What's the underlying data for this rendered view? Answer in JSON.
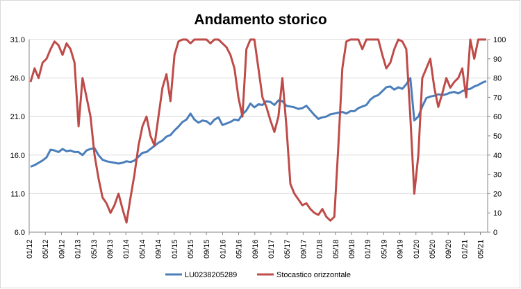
{
  "chart_data": {
    "type": "line",
    "title": "Andamento storico",
    "x_tick_labels": [
      "01/12",
      "05/12",
      "09/12",
      "01/13",
      "05/13",
      "09/13",
      "01/14",
      "05/14",
      "09/14",
      "01/15",
      "05/15",
      "09/15",
      "01/16",
      "05/16",
      "09/16",
      "01/17",
      "05/17",
      "09/17",
      "01/18",
      "05/18",
      "09/18",
      "01/19",
      "05/19",
      "09/19",
      "01/20",
      "05/20",
      "09/20",
      "01/21",
      "05/21"
    ],
    "y_left": {
      "ticks": [
        "6.0",
        "11.0",
        "16.0",
        "21.0",
        "26.0",
        "31.0"
      ],
      "ylim": [
        6,
        31
      ]
    },
    "y_right": {
      "ticks": [
        "0",
        "10",
        "20",
        "30",
        "40",
        "50",
        "60",
        "70",
        "80",
        "90",
        "100"
      ],
      "ylim": [
        0,
        100
      ]
    },
    "grid": "horizontal",
    "legend_position": "bottom",
    "colors": {
      "series_1": "#4a7ebb",
      "series_2": "#be4b48",
      "gridline": "#d9d9d9",
      "axis": "#868686"
    },
    "series": [
      {
        "name": "LU0238205289",
        "axis": "left",
        "x": [
          0,
          1,
          2,
          3,
          4,
          5,
          6,
          7,
          8,
          9,
          10,
          11,
          12,
          13,
          14,
          15,
          16,
          17,
          18,
          19,
          20,
          21,
          22,
          23,
          24,
          25,
          26,
          27,
          28,
          29,
          30,
          31,
          32,
          33,
          34,
          35,
          36,
          37,
          38,
          39,
          40,
          41,
          42,
          43,
          44,
          45,
          46,
          47,
          48,
          49,
          50,
          51,
          52,
          53,
          54,
          55,
          56,
          57,
          58,
          59,
          60,
          61,
          62,
          63,
          64,
          65,
          66,
          67,
          68,
          69,
          70,
          71,
          72,
          73,
          74,
          75,
          76,
          77,
          78,
          79,
          80,
          81,
          82,
          83,
          84,
          85,
          86,
          87,
          88,
          89,
          90,
          91,
          92,
          93,
          94,
          95,
          96,
          97,
          98,
          99,
          100,
          101,
          102,
          103,
          104,
          105,
          106,
          107,
          108,
          109,
          110,
          111,
          112,
          113,
          114
        ],
        "values": [
          14.5,
          14.7,
          15.0,
          15.3,
          15.7,
          16.7,
          16.6,
          16.4,
          16.8,
          16.5,
          16.6,
          16.4,
          16.4,
          16.0,
          16.6,
          16.8,
          16.9,
          16.0,
          15.4,
          15.2,
          15.1,
          15.0,
          14.9,
          15.0,
          15.2,
          15.1,
          15.3,
          15.8,
          16.3,
          16.4,
          16.8,
          17.2,
          17.6,
          17.9,
          18.4,
          18.6,
          19.2,
          19.7,
          20.3,
          20.6,
          21.4,
          20.6,
          20.2,
          20.5,
          20.4,
          20.0,
          20.6,
          20.9,
          19.9,
          20.1,
          20.3,
          20.6,
          20.5,
          21.3,
          21.8,
          22.7,
          22.2,
          22.6,
          22.5,
          23.0,
          22.9,
          22.5,
          23.1,
          23.0,
          22.4,
          22.3,
          22.2,
          22.0,
          22.1,
          22.4,
          21.8,
          21.2,
          20.7,
          20.9,
          21.0,
          21.3,
          21.4,
          21.5,
          21.6,
          21.4,
          21.7,
          21.7,
          22.1,
          22.3,
          22.5,
          23.2,
          23.6,
          23.8,
          24.3,
          24.8,
          24.9,
          24.5,
          24.8,
          24.6,
          25.2,
          26.0,
          20.5,
          21.0,
          22.3,
          23.4,
          23.6,
          23.7,
          23.9,
          23.8,
          23.9,
          24.1,
          24.2,
          24.0,
          24.3,
          24.5,
          24.6,
          24.9,
          25.1,
          25.4,
          25.6
        ]
      },
      {
        "name": "Stocastico orizzontale",
        "axis": "right",
        "x": [
          0,
          1,
          2,
          3,
          4,
          5,
          6,
          7,
          8,
          9,
          10,
          11,
          12,
          13,
          14,
          15,
          16,
          17,
          18,
          19,
          20,
          21,
          22,
          23,
          24,
          25,
          26,
          27,
          28,
          29,
          30,
          31,
          32,
          33,
          34,
          35,
          36,
          37,
          38,
          39,
          40,
          41,
          42,
          43,
          44,
          45,
          46,
          47,
          48,
          49,
          50,
          51,
          52,
          53,
          54,
          55,
          56,
          57,
          58,
          59,
          60,
          61,
          62,
          63,
          64,
          65,
          66,
          67,
          68,
          69,
          70,
          71,
          72,
          73,
          74,
          75,
          76,
          77,
          78,
          79,
          80,
          81,
          82,
          83,
          84,
          85,
          86,
          87,
          88,
          89,
          90,
          91,
          92,
          93,
          94,
          95,
          96,
          97,
          98,
          99,
          100,
          101,
          102,
          103,
          104,
          105,
          106,
          107,
          108,
          109,
          110,
          111,
          112,
          113,
          114
        ],
        "values": [
          78,
          85,
          80,
          88,
          90,
          95,
          99,
          97,
          92,
          98,
          95,
          88,
          55,
          80,
          70,
          60,
          40,
          28,
          18,
          15,
          10,
          14,
          20,
          12,
          5,
          18,
          30,
          45,
          55,
          60,
          50,
          45,
          60,
          75,
          82,
          68,
          92,
          99,
          100,
          100,
          98,
          100,
          100,
          100,
          100,
          98,
          100,
          100,
          98,
          96,
          92,
          85,
          70,
          60,
          95,
          100,
          100,
          85,
          70,
          65,
          58,
          52,
          60,
          80,
          55,
          25,
          20,
          17,
          14,
          15,
          12,
          10,
          9,
          12,
          8,
          6,
          8,
          45,
          85,
          99,
          100,
          100,
          100,
          95,
          100,
          100,
          100,
          100,
          92,
          85,
          88,
          95,
          100,
          99,
          95,
          60,
          20,
          40,
          80,
          85,
          90,
          75,
          65,
          72,
          80,
          75,
          78,
          80,
          85,
          70,
          100,
          90,
          100,
          100,
          100
        ]
      }
    ]
  }
}
